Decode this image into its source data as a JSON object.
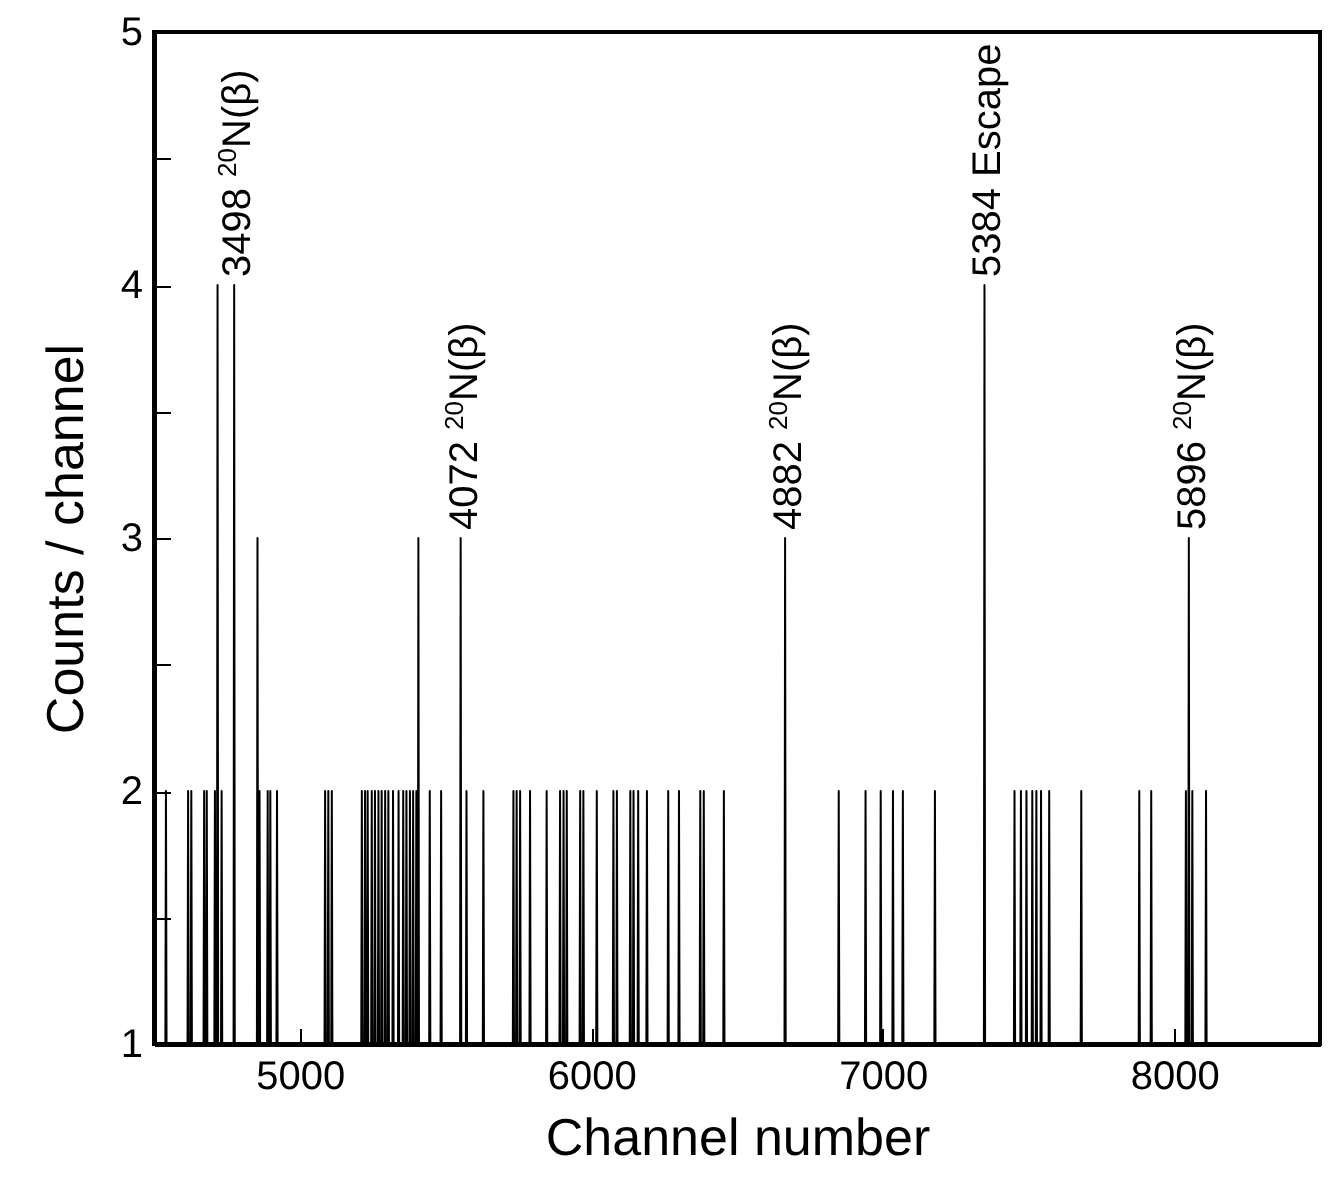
{
  "chart_data": {
    "type": "line",
    "xlabel": "Channel number",
    "ylabel": "Counts / channel",
    "xlim": [
      4500,
      8500
    ],
    "xticks": [
      5000,
      6000,
      7000,
      8000
    ],
    "ylim": [
      1,
      5
    ],
    "yticks": [
      1,
      {
        "value": 1.5,
        "label": null
      },
      2,
      {
        "value": 2.5,
        "label": null
      },
      3,
      {
        "value": 3.5,
        "label": null
      },
      4,
      {
        "value": 4.5,
        "label": null
      },
      5
    ],
    "grid": false,
    "marker": "none",
    "line_style": "solid",
    "series": [
      {
        "color": "#000000",
        "x": [
          4539,
          4541,
          4543,
          4615,
          4617,
          4619,
          4626,
          4628,
          4630,
          4670,
          4672,
          4674,
          4679,
          4681,
          4683,
          4707,
          4709,
          4711,
          4716,
          4718,
          4720,
          4730,
          4732,
          4734,
          4773,
          4775,
          4777,
          4853,
          4855,
          4857,
          4860,
          4862,
          4864,
          4888,
          4890,
          4892,
          4897,
          4899,
          4901,
          4920,
          4922,
          4924,
          5085,
          5087,
          5089,
          5096,
          5098,
          5100,
          5108,
          5110,
          5112,
          5211,
          5213,
          5215,
          5222,
          5224,
          5226,
          5231,
          5233,
          5235,
          5245,
          5247,
          5249,
          5256,
          5258,
          5260,
          5268,
          5270,
          5272,
          5279,
          5281,
          5283,
          5291,
          5293,
          5295,
          5302,
          5304,
          5306,
          5318,
          5320,
          5322,
          5337,
          5339,
          5341,
          5353,
          5355,
          5357,
          5364,
          5366,
          5368,
          5376,
          5378,
          5380,
          5387,
          5389,
          5391,
          5398,
          5400,
          5402,
          5405,
          5407,
          5409,
          5444,
          5446,
          5448,
          5483,
          5485,
          5487,
          5550,
          5552,
          5554,
          5570,
          5572,
          5574,
          5628,
          5630,
          5632,
          5731,
          5733,
          5735,
          5742,
          5744,
          5746,
          5754,
          5756,
          5758,
          5788,
          5790,
          5792,
          5845,
          5847,
          5849,
          5891,
          5893,
          5895,
          5903,
          5905,
          5907,
          5914,
          5916,
          5918,
          5960,
          5962,
          5964,
          5971,
          5973,
          5975,
          6017,
          6019,
          6021,
          6074,
          6076,
          6078,
          6086,
          6088,
          6090,
          6132,
          6134,
          6136,
          6143,
          6145,
          6147,
          6159,
          6161,
          6163,
          6189,
          6191,
          6193,
          6262,
          6264,
          6266,
          6299,
          6301,
          6303,
          6372,
          6374,
          6376,
          6384,
          6386,
          6388,
          6453,
          6455,
          6457,
          6663,
          6665,
          6667,
          6847,
          6849,
          6851,
          6939,
          6941,
          6943,
          6991,
          6993,
          6995,
          7033,
          7035,
          7037,
          7067,
          7069,
          7071,
          7177,
          7179,
          7181,
          7347,
          7349,
          7351,
          7450,
          7452,
          7454,
          7472,
          7474,
          7476,
          7491,
          7493,
          7495,
          7511,
          7513,
          7515,
          7525,
          7527,
          7529,
          7541,
          7543,
          7545,
          7569,
          7571,
          7573,
          7679,
          7681,
          7683,
          7878,
          7880,
          7882,
          7919,
          7921,
          7923,
          8038,
          8040,
          8042,
          8048,
          8050,
          8052,
          8060,
          8062,
          8064,
          8107,
          8109,
          8111
        ],
        "values": [
          1,
          2,
          1,
          1,
          2,
          1,
          1,
          2,
          1,
          1,
          2,
          1,
          1,
          2,
          1,
          1,
          2,
          1,
          1,
          4,
          1,
          1,
          2,
          1,
          1,
          4,
          1,
          1,
          3,
          1,
          1,
          2,
          1,
          1,
          2,
          1,
          1,
          2,
          1,
          1,
          2,
          1,
          1,
          2,
          1,
          1,
          2,
          1,
          1,
          2,
          1,
          1,
          2,
          1,
          1,
          2,
          1,
          1,
          2,
          1,
          1,
          2,
          1,
          1,
          2,
          1,
          1,
          2,
          1,
          1,
          2,
          1,
          1,
          2,
          1,
          1,
          2,
          1,
          1,
          2,
          1,
          1,
          2,
          1,
          1,
          2,
          1,
          1,
          2,
          1,
          1,
          2,
          1,
          1,
          2,
          1,
          1,
          2,
          1,
          1,
          3,
          1,
          1,
          2,
          1,
          1,
          2,
          1,
          1,
          3,
          1,
          1,
          2,
          1,
          1,
          2,
          1,
          1,
          2,
          1,
          1,
          2,
          1,
          1,
          2,
          1,
          1,
          2,
          1,
          1,
          2,
          1,
          1,
          2,
          1,
          1,
          2,
          1,
          1,
          2,
          1,
          1,
          2,
          1,
          1,
          2,
          1,
          1,
          2,
          1,
          1,
          2,
          1,
          1,
          2,
          1,
          1,
          2,
          1,
          1,
          2,
          1,
          1,
          2,
          1,
          1,
          2,
          1,
          1,
          2,
          1,
          1,
          2,
          1,
          1,
          2,
          1,
          1,
          2,
          1,
          1,
          2,
          1,
          1,
          3,
          1,
          1,
          2,
          1,
          1,
          2,
          1,
          1,
          2,
          1,
          1,
          2,
          1,
          1,
          2,
          1,
          1,
          2,
          1,
          1,
          4,
          1,
          1,
          2,
          1,
          1,
          2,
          1,
          1,
          2,
          1,
          1,
          2,
          1,
          1,
          2,
          1,
          1,
          2,
          1,
          1,
          2,
          1,
          1,
          2,
          1,
          1,
          2,
          1,
          1,
          2,
          1,
          1,
          2,
          1,
          1,
          3,
          1,
          1,
          2,
          1,
          1,
          2,
          1
        ]
      }
    ],
    "annotations": [
      {
        "text": "3498 $^{20}$N(β)",
        "x": 4775,
        "y": 4
      },
      {
        "text": "4072 $^{20}$N(β)",
        "x": 5552,
        "y": 3
      },
      {
        "text": "4882 $^{20}$N(β)",
        "x": 6665,
        "y": 3
      },
      {
        "text": "5384 Escape",
        "x": 7349,
        "y": 4
      },
      {
        "text": "5896 $^{20}$N(β)",
        "x": 8050,
        "y": 3
      }
    ]
  }
}
